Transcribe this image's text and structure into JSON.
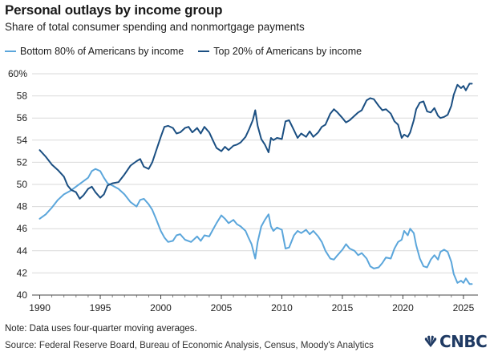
{
  "header": {
    "title": "Personal outlays by income group",
    "subtitle": "Share of total consumer spending and nonmortgage payments"
  },
  "legend": [
    {
      "label": "Bottom 80% of Americans by income",
      "color": "#5ba6db"
    },
    {
      "label": "Top 20% of Americans by income",
      "color": "#1b4f82"
    }
  ],
  "footer": {
    "note": "Note: Data uses four-quarter moving averages.",
    "source": "Source: Federal Reserve Board, Bureau of Economic Analysis, Census, Moody's Analytics",
    "logo": "CNBC"
  },
  "chart_data": {
    "type": "line",
    "title": "Personal outlays by income group",
    "subtitle": "Share of total consumer spending and nonmortgage payments",
    "xlim": [
      1989.5,
      2025.8
    ],
    "ylim": [
      40,
      60
    ],
    "x_ticks": [
      "1990",
      "1995",
      "2000",
      "2005",
      "2010",
      "2015",
      "2020",
      "2025"
    ],
    "y_ticks": [
      "40",
      "42",
      "44",
      "46",
      "48",
      "50",
      "52",
      "54",
      "56",
      "58",
      "60%"
    ],
    "grid": "horizontal",
    "legend_position": "top-left",
    "series": [
      {
        "name": "Bottom 80% of Americans by income",
        "color": "#5ba6db",
        "points": [
          [
            1990.0,
            46.9
          ],
          [
            1990.5,
            47.3
          ],
          [
            1991.0,
            47.9
          ],
          [
            1991.5,
            48.6
          ],
          [
            1992.0,
            49.1
          ],
          [
            1992.5,
            49.4
          ],
          [
            1993.0,
            49.8
          ],
          [
            1993.5,
            50.2
          ],
          [
            1994.0,
            50.6
          ],
          [
            1994.3,
            51.2
          ],
          [
            1994.6,
            51.4
          ],
          [
            1995.0,
            51.2
          ],
          [
            1995.3,
            50.6
          ],
          [
            1995.6,
            50.1
          ],
          [
            1996.0,
            49.9
          ],
          [
            1996.5,
            49.6
          ],
          [
            1997.0,
            49.1
          ],
          [
            1997.5,
            48.4
          ],
          [
            1998.0,
            48.0
          ],
          [
            1998.3,
            48.6
          ],
          [
            1998.6,
            48.7
          ],
          [
            1999.0,
            48.2
          ],
          [
            1999.3,
            47.7
          ],
          [
            1999.6,
            46.9
          ],
          [
            2000.0,
            45.8
          ],
          [
            2000.3,
            45.2
          ],
          [
            2000.6,
            44.8
          ],
          [
            2001.0,
            44.9
          ],
          [
            2001.3,
            45.4
          ],
          [
            2001.6,
            45.5
          ],
          [
            2002.0,
            45.0
          ],
          [
            2002.5,
            44.8
          ],
          [
            2003.0,
            45.3
          ],
          [
            2003.3,
            44.9
          ],
          [
            2003.6,
            45.4
          ],
          [
            2004.0,
            45.3
          ],
          [
            2004.3,
            45.9
          ],
          [
            2004.6,
            46.5
          ],
          [
            2005.0,
            47.2
          ],
          [
            2005.3,
            46.9
          ],
          [
            2005.6,
            46.5
          ],
          [
            2006.0,
            46.8
          ],
          [
            2006.3,
            46.4
          ],
          [
            2006.6,
            46.2
          ],
          [
            2007.0,
            45.8
          ],
          [
            2007.2,
            45.3
          ],
          [
            2007.5,
            44.6
          ],
          [
            2007.8,
            43.3
          ],
          [
            2008.0,
            44.8
          ],
          [
            2008.3,
            46.2
          ],
          [
            2008.6,
            46.8
          ],
          [
            2008.9,
            47.3
          ],
          [
            2009.1,
            46.2
          ],
          [
            2009.3,
            45.8
          ],
          [
            2009.6,
            46.1
          ],
          [
            2010.0,
            45.9
          ],
          [
            2010.3,
            44.2
          ],
          [
            2010.6,
            44.3
          ],
          [
            2011.0,
            45.4
          ],
          [
            2011.3,
            45.8
          ],
          [
            2011.6,
            45.6
          ],
          [
            2012.0,
            45.9
          ],
          [
            2012.3,
            45.5
          ],
          [
            2012.6,
            45.8
          ],
          [
            2013.0,
            45.3
          ],
          [
            2013.3,
            44.8
          ],
          [
            2013.6,
            44.0
          ],
          [
            2014.0,
            43.3
          ],
          [
            2014.3,
            43.2
          ],
          [
            2014.6,
            43.6
          ],
          [
            2015.0,
            44.1
          ],
          [
            2015.3,
            44.6
          ],
          [
            2015.6,
            44.2
          ],
          [
            2016.0,
            44.0
          ],
          [
            2016.3,
            43.6
          ],
          [
            2016.6,
            43.8
          ],
          [
            2017.0,
            43.3
          ],
          [
            2017.3,
            42.6
          ],
          [
            2017.6,
            42.4
          ],
          [
            2018.0,
            42.5
          ],
          [
            2018.3,
            42.9
          ],
          [
            2018.6,
            43.4
          ],
          [
            2019.0,
            43.3
          ],
          [
            2019.3,
            44.2
          ],
          [
            2019.6,
            44.8
          ],
          [
            2019.9,
            45.0
          ],
          [
            2020.1,
            45.8
          ],
          [
            2020.4,
            45.4
          ],
          [
            2020.6,
            46.0
          ],
          [
            2020.9,
            45.6
          ],
          [
            2021.1,
            44.5
          ],
          [
            2021.4,
            43.3
          ],
          [
            2021.7,
            42.6
          ],
          [
            2022.0,
            42.5
          ],
          [
            2022.3,
            43.2
          ],
          [
            2022.6,
            43.6
          ],
          [
            2022.9,
            43.2
          ],
          [
            2023.1,
            43.9
          ],
          [
            2023.4,
            44.1
          ],
          [
            2023.7,
            43.9
          ],
          [
            2024.0,
            43.0
          ],
          [
            2024.2,
            41.9
          ],
          [
            2024.5,
            41.1
          ],
          [
            2024.8,
            41.3
          ],
          [
            2025.0,
            41.1
          ],
          [
            2025.2,
            41.5
          ],
          [
            2025.5,
            41.0
          ],
          [
            2025.7,
            41.0
          ]
        ]
      },
      {
        "name": "Top 20% of Americans by income",
        "color": "#1b4f82",
        "points": [
          [
            1990.0,
            53.1
          ],
          [
            1990.5,
            52.5
          ],
          [
            1991.0,
            51.8
          ],
          [
            1991.5,
            51.3
          ],
          [
            1992.0,
            50.7
          ],
          [
            1992.3,
            49.9
          ],
          [
            1992.6,
            49.5
          ],
          [
            1993.0,
            49.3
          ],
          [
            1993.3,
            48.7
          ],
          [
            1993.6,
            49.0
          ],
          [
            1994.0,
            49.6
          ],
          [
            1994.3,
            49.8
          ],
          [
            1994.6,
            49.3
          ],
          [
            1995.0,
            48.8
          ],
          [
            1995.3,
            49.1
          ],
          [
            1995.6,
            49.9
          ],
          [
            1996.0,
            50.1
          ],
          [
            1996.5,
            50.2
          ],
          [
            1997.0,
            50.9
          ],
          [
            1997.5,
            51.7
          ],
          [
            1998.0,
            52.1
          ],
          [
            1998.3,
            52.3
          ],
          [
            1998.6,
            51.6
          ],
          [
            1999.0,
            51.4
          ],
          [
            1999.3,
            52.0
          ],
          [
            1999.6,
            53.0
          ],
          [
            2000.0,
            54.3
          ],
          [
            2000.3,
            55.2
          ],
          [
            2000.6,
            55.3
          ],
          [
            2001.0,
            55.1
          ],
          [
            2001.3,
            54.6
          ],
          [
            2001.6,
            54.7
          ],
          [
            2002.0,
            55.1
          ],
          [
            2002.3,
            55.2
          ],
          [
            2002.6,
            54.7
          ],
          [
            2003.0,
            55.1
          ],
          [
            2003.3,
            54.6
          ],
          [
            2003.6,
            55.2
          ],
          [
            2004.0,
            54.7
          ],
          [
            2004.3,
            54.0
          ],
          [
            2004.6,
            53.3
          ],
          [
            2005.0,
            53.0
          ],
          [
            2005.3,
            53.4
          ],
          [
            2005.6,
            53.1
          ],
          [
            2006.0,
            53.5
          ],
          [
            2006.3,
            53.6
          ],
          [
            2006.6,
            53.8
          ],
          [
            2007.0,
            54.3
          ],
          [
            2007.3,
            55.0
          ],
          [
            2007.6,
            55.8
          ],
          [
            2007.8,
            56.7
          ],
          [
            2008.0,
            55.3
          ],
          [
            2008.3,
            54.1
          ],
          [
            2008.6,
            53.6
          ],
          [
            2008.9,
            52.9
          ],
          [
            2009.1,
            54.2
          ],
          [
            2009.3,
            54.0
          ],
          [
            2009.6,
            54.2
          ],
          [
            2010.0,
            54.1
          ],
          [
            2010.3,
            55.7
          ],
          [
            2010.6,
            55.8
          ],
          [
            2011.0,
            54.9
          ],
          [
            2011.3,
            54.2
          ],
          [
            2011.6,
            54.6
          ],
          [
            2012.0,
            54.3
          ],
          [
            2012.3,
            54.8
          ],
          [
            2012.6,
            54.3
          ],
          [
            2013.0,
            54.7
          ],
          [
            2013.3,
            55.2
          ],
          [
            2013.6,
            55.4
          ],
          [
            2014.0,
            56.4
          ],
          [
            2014.3,
            56.8
          ],
          [
            2014.6,
            56.5
          ],
          [
            2015.0,
            56.0
          ],
          [
            2015.3,
            55.6
          ],
          [
            2015.6,
            55.8
          ],
          [
            2016.0,
            56.2
          ],
          [
            2016.3,
            56.5
          ],
          [
            2016.6,
            56.7
          ],
          [
            2017.0,
            57.6
          ],
          [
            2017.3,
            57.8
          ],
          [
            2017.6,
            57.7
          ],
          [
            2018.0,
            57.1
          ],
          [
            2018.3,
            56.7
          ],
          [
            2018.6,
            56.8
          ],
          [
            2019.0,
            56.4
          ],
          [
            2019.3,
            55.7
          ],
          [
            2019.6,
            55.4
          ],
          [
            2019.9,
            54.2
          ],
          [
            2020.1,
            54.5
          ],
          [
            2020.4,
            54.3
          ],
          [
            2020.6,
            54.7
          ],
          [
            2020.9,
            55.8
          ],
          [
            2021.1,
            56.8
          ],
          [
            2021.4,
            57.4
          ],
          [
            2021.7,
            57.5
          ],
          [
            2022.0,
            56.6
          ],
          [
            2022.3,
            56.5
          ],
          [
            2022.6,
            56.9
          ],
          [
            2022.9,
            56.2
          ],
          [
            2023.1,
            56.0
          ],
          [
            2023.4,
            56.1
          ],
          [
            2023.7,
            56.3
          ],
          [
            2024.0,
            57.1
          ],
          [
            2024.2,
            58.1
          ],
          [
            2024.5,
            59.0
          ],
          [
            2024.8,
            58.7
          ],
          [
            2025.0,
            58.9
          ],
          [
            2025.2,
            58.5
          ],
          [
            2025.5,
            59.1
          ],
          [
            2025.7,
            59.1
          ]
        ]
      }
    ]
  }
}
